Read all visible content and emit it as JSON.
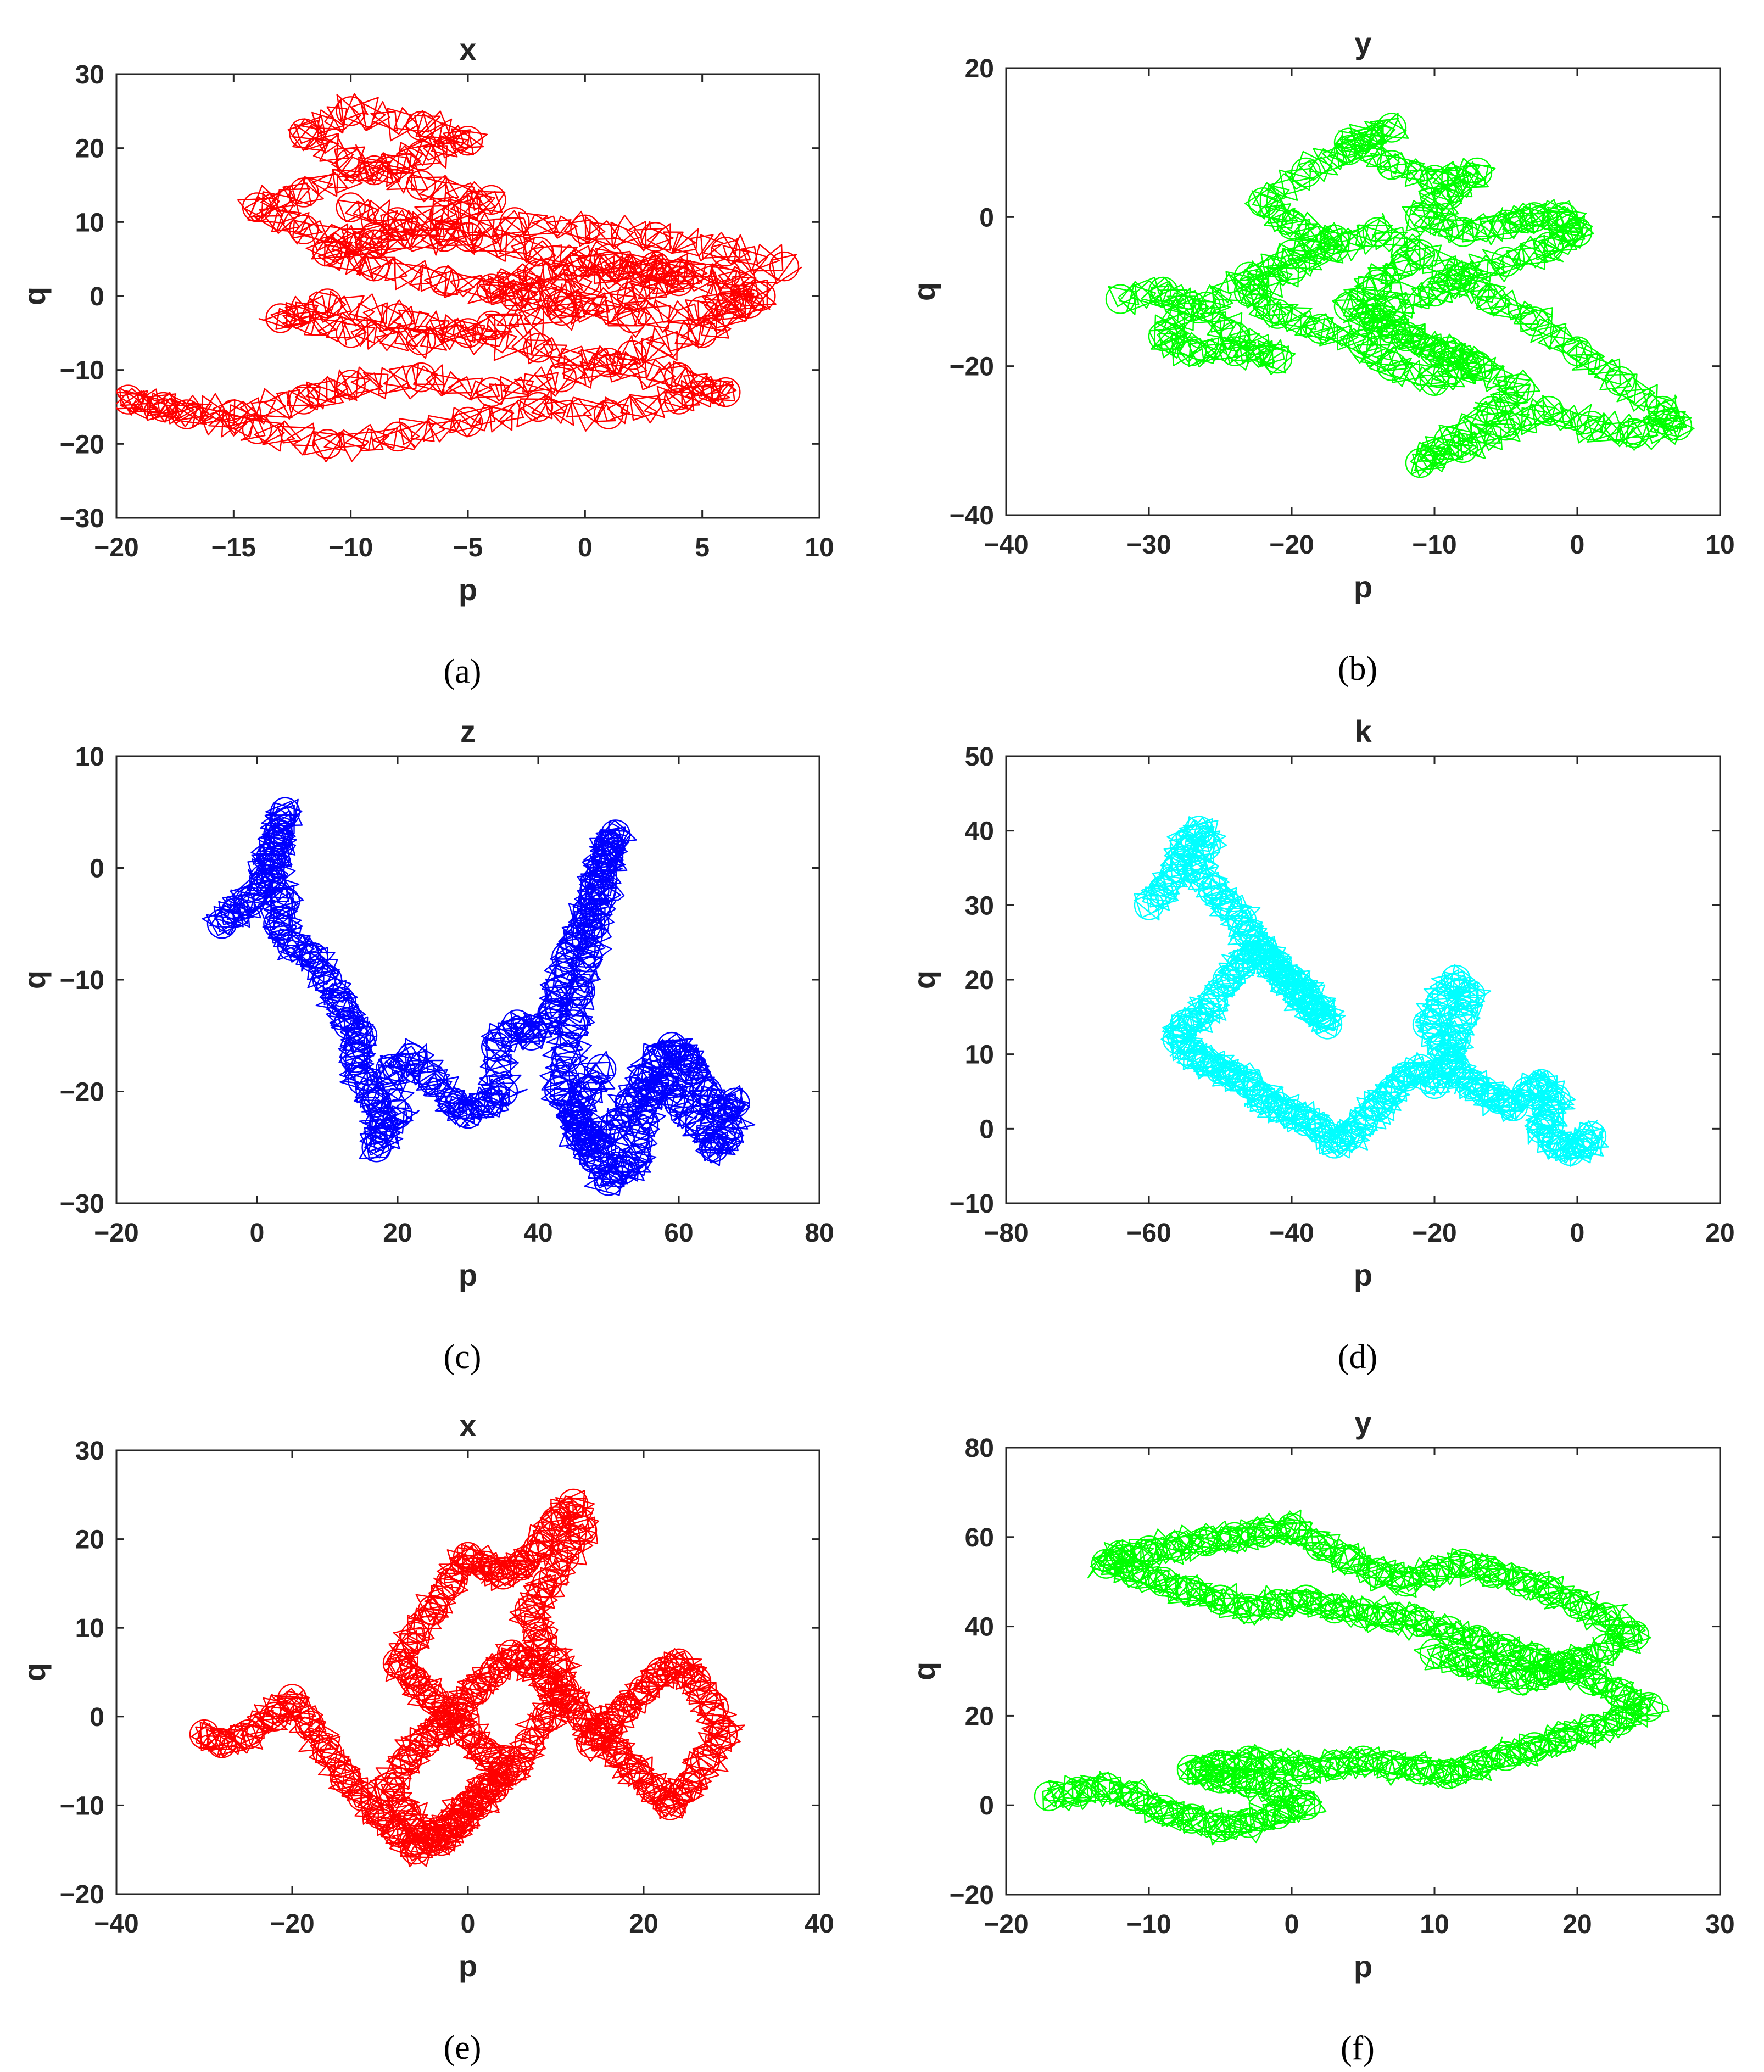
{
  "chart_data": [
    {
      "type": "line",
      "caption": "(a)",
      "title": "x",
      "xlabel": "p",
      "ylabel": "q",
      "xlim": [
        -20,
        10
      ],
      "ylim": [
        -30,
        30
      ],
      "xticks": [
        -20,
        -15,
        -10,
        -5,
        0,
        5,
        10
      ],
      "yticks": [
        -30,
        -20,
        -10,
        0,
        10,
        20,
        30
      ],
      "color": "#ff0000",
      "series": [
        {
          "x": [
            8.5,
            6,
            3,
            0,
            -3,
            -6,
            -9,
            -12,
            -14,
            -12,
            -9,
            -7,
            -5,
            -7,
            -10,
            -12,
            -10,
            -7,
            -4,
            -6,
            -9,
            -11,
            -9,
            -6,
            -3,
            0,
            3,
            6,
            7.5,
            5,
            2,
            -1,
            -4,
            -2,
            1,
            4,
            7,
            5,
            2,
            -1,
            -4,
            -7,
            -10,
            -12,
            -15,
            -18,
            -19.5,
            -17,
            -14,
            -11,
            -8,
            -5,
            -2,
            1,
            4,
            6,
            4,
            1,
            -2,
            -5,
            -8,
            -11,
            -13,
            -10,
            -7,
            -4,
            -1,
            2,
            4,
            1,
            -2,
            -5,
            -8,
            -10
          ],
          "y": [
            4,
            6,
            8,
            9,
            10,
            8,
            7,
            9,
            12,
            14,
            17,
            19,
            21,
            23,
            25,
            22,
            18,
            15,
            13,
            11,
            8,
            6,
            4,
            2,
            0,
            2,
            4,
            3,
            0,
            -2,
            -3,
            -1,
            1,
            3,
            5,
            3,
            -1,
            -5,
            -8,
            -11,
            -13,
            -11,
            -12,
            -14,
            -16,
            -15,
            -14,
            -16,
            -18,
            -20,
            -19,
            -17,
            -15,
            -16,
            -14,
            -13,
            -11,
            -9,
            -7,
            -5,
            -3,
            -1,
            -3,
            -5,
            -6,
            -4,
            -2,
            0,
            2,
            4,
            6,
            8,
            10,
            12
          ]
        }
      ]
    },
    {
      "type": "line",
      "caption": "(b)",
      "title": "y",
      "xlabel": "p",
      "ylabel": "q",
      "xlim": [
        -40,
        10
      ],
      "ylim": [
        -40,
        20
      ],
      "xticks": [
        -40,
        -30,
        -20,
        -10,
        0,
        10
      ],
      "yticks": [
        -40,
        -20,
        0,
        20
      ],
      "color": "#00ff00",
      "series": [
        {
          "x": [
            -32,
            -29,
            -27,
            -29,
            -27,
            -24,
            -21,
            -24,
            -26,
            -23,
            -20,
            -17,
            -20,
            -22,
            -19,
            -16,
            -13,
            -16,
            -13,
            -10,
            -7,
            -9,
            -11,
            -8,
            -5,
            -3,
            -1,
            0,
            -2,
            -5,
            -8,
            -10,
            -13,
            -15,
            -12,
            -9,
            -7,
            -10,
            -13,
            -15,
            -18,
            -21,
            -23,
            -20,
            -17,
            -14,
            -11,
            -8,
            -6,
            -3,
            0,
            3,
            6,
            7,
            4,
            1,
            -2,
            -5,
            -8,
            -11,
            -9,
            -6,
            -4,
            -7,
            -10,
            -13,
            -16,
            -14,
            -12
          ],
          "y": [
            -11,
            -10,
            -12,
            -16,
            -18,
            -18,
            -19,
            -16,
            -12,
            -8,
            -5,
            -3,
            -1,
            2,
            6,
            9,
            12,
            10,
            7,
            5,
            6,
            3,
            0,
            -2,
            -1,
            0,
            0,
            -2,
            -4,
            -6,
            -8,
            -10,
            -12,
            -14,
            -16,
            -18,
            -20,
            -22,
            -20,
            -17,
            -15,
            -13,
            -10,
            -7,
            -4,
            -2,
            -5,
            -8,
            -11,
            -14,
            -18,
            -22,
            -26,
            -28,
            -29,
            -28,
            -26,
            -28,
            -31,
            -33,
            -30,
            -26,
            -23,
            -20,
            -18,
            -15,
            -12,
            -9,
            -6
          ]
        }
      ]
    },
    {
      "type": "line",
      "caption": "(c)",
      "title": "z",
      "xlabel": "p",
      "ylabel": "q",
      "xlim": [
        -20,
        80
      ],
      "ylim": [
        -30,
        10
      ],
      "xticks": [
        -20,
        0,
        20,
        40,
        60,
        80
      ],
      "yticks": [
        -30,
        -20,
        -10,
        0,
        10
      ],
      "color": "#0000ff",
      "series": [
        {
          "x": [
            -5,
            -3,
            -1,
            1,
            2,
            3,
            4,
            3,
            2,
            4,
            3,
            5,
            8,
            10,
            12,
            13,
            15,
            14,
            15,
            17,
            18,
            17,
            20,
            19,
            22,
            25,
            28,
            30,
            33,
            35,
            34,
            37,
            39,
            42,
            43,
            44,
            46,
            47,
            48,
            49,
            50,
            51,
            50,
            49,
            48,
            47,
            46,
            45,
            44,
            43,
            45,
            47,
            49,
            51,
            53,
            55,
            57,
            59,
            61,
            62,
            64,
            66,
            68,
            67,
            65,
            63,
            60,
            58,
            56,
            55,
            54,
            52,
            50,
            48,
            46,
            45,
            47,
            49
          ],
          "y": [
            -5,
            -4,
            -3,
            -1,
            1,
            3,
            5,
            2,
            -1,
            -3,
            -5,
            -7,
            -8,
            -10,
            -12,
            -14,
            -15,
            -17,
            -19,
            -21,
            -23,
            -25,
            -22,
            -18,
            -17,
            -19,
            -21,
            -22,
            -21,
            -20,
            -16,
            -14,
            -15,
            -13,
            -11,
            -8,
            -6,
            -4,
            -2,
            0,
            2,
            3,
            1,
            -2,
            -5,
            -8,
            -11,
            -14,
            -17,
            -20,
            -22,
            -24,
            -25,
            -23,
            -21,
            -19,
            -17,
            -16,
            -17,
            -18,
            -20,
            -22,
            -21,
            -24,
            -25,
            -23,
            -21,
            -19,
            -20,
            -23,
            -26,
            -27,
            -28,
            -26,
            -24,
            -22,
            -20,
            -18
          ]
        }
      ]
    },
    {
      "type": "line",
      "caption": "(d)",
      "title": "k",
      "xlabel": "p",
      "ylabel": "q",
      "xlim": [
        -80,
        20
      ],
      "ylim": [
        -10,
        50
      ],
      "xticks": [
        -80,
        -60,
        -40,
        -20,
        0,
        20
      ],
      "yticks": [
        -10,
        0,
        10,
        20,
        30,
        40,
        50
      ],
      "color": "#00ffff",
      "series": [
        {
          "x": [
            -60,
            -58,
            -56,
            -55,
            -53,
            -52,
            -54,
            -51,
            -49,
            -47,
            -46,
            -44,
            -42,
            -40,
            -38,
            -36,
            -35,
            -37,
            -39,
            -41,
            -43,
            -45,
            -47,
            -49,
            -51,
            -53,
            -55,
            -56,
            -54,
            -52,
            -50,
            -48,
            -46,
            -44,
            -42,
            -40,
            -38,
            -36,
            -34,
            -32,
            -30,
            -28,
            -26,
            -24,
            -22,
            -20,
            -18,
            -17,
            -16,
            -15,
            -17,
            -19,
            -21,
            -19,
            -17,
            -15,
            -13,
            -11,
            -9,
            -7,
            -5,
            -3,
            -4,
            -5,
            -3,
            -1,
            1,
            2
          ],
          "y": [
            30,
            32,
            35,
            38,
            40,
            38,
            35,
            32,
            30,
            28,
            26,
            24,
            22,
            20,
            18,
            16,
            14,
            16,
            18,
            20,
            22,
            24,
            22,
            20,
            17,
            15,
            14,
            12,
            10,
            9,
            8,
            7,
            6,
            4,
            3,
            2,
            1,
            0,
            -2,
            -1,
            1,
            3,
            5,
            7,
            8,
            6,
            9,
            12,
            15,
            18,
            20,
            17,
            14,
            11,
            8,
            6,
            5,
            4,
            3,
            5,
            6,
            4,
            2,
            0,
            -2,
            -3,
            -2,
            -1
          ]
        }
      ]
    },
    {
      "type": "line",
      "caption": "(e)",
      "title": "x",
      "xlabel": "p",
      "ylabel": "q",
      "xlim": [
        -40,
        40
      ],
      "ylim": [
        -20,
        30
      ],
      "xticks": [
        -40,
        -20,
        0,
        20,
        40
      ],
      "yticks": [
        -20,
        -10,
        0,
        10,
        20,
        30
      ],
      "color": "#ff0000",
      "series": [
        {
          "x": [
            -30,
            -28,
            -25,
            -22,
            -20,
            -18,
            -16,
            -14,
            -12,
            -10,
            -8,
            -6,
            -4,
            -2,
            0,
            2,
            4,
            2,
            0,
            -2,
            -4,
            -6,
            -8,
            -6,
            -4,
            -2,
            0,
            2,
            4,
            6,
            8,
            10,
            12,
            13,
            11,
            9,
            7,
            8,
            10,
            11,
            9,
            7,
            5,
            3,
            1,
            -1,
            -3,
            -5,
            -7,
            -9,
            -7,
            -5,
            -3,
            -1,
            1,
            3,
            5,
            7,
            9,
            11,
            13,
            15,
            17,
            19,
            21,
            23,
            25,
            27,
            29,
            28,
            26,
            24,
            22,
            20,
            18,
            16,
            14
          ],
          "y": [
            -2,
            -3,
            -2,
            0,
            2,
            -1,
            -4,
            -7,
            -9,
            -11,
            -13,
            -15,
            -14,
            -12,
            -10,
            -8,
            -6,
            -4,
            -2,
            0,
            2,
            4,
            6,
            9,
            12,
            15,
            18,
            17,
            16,
            17,
            19,
            22,
            24,
            21,
            18,
            15,
            12,
            9,
            6,
            3,
            0,
            -3,
            -6,
            -8,
            -10,
            -12,
            -14,
            -13,
            -11,
            -8,
            -5,
            -3,
            -1,
            1,
            3,
            5,
            7,
            6,
            4,
            2,
            0,
            -2,
            -4,
            -6,
            -8,
            -10,
            -8,
            -5,
            -2,
            1,
            4,
            6,
            5,
            3,
            1,
            -1,
            -3
          ]
        }
      ]
    },
    {
      "type": "line",
      "caption": "(f)",
      "title": "y",
      "xlabel": "p",
      "ylabel": "q",
      "xlim": [
        -20,
        30
      ],
      "ylim": [
        -20,
        80
      ],
      "xticks": [
        -20,
        -10,
        0,
        10,
        20,
        30
      ],
      "yticks": [
        -20,
        0,
        20,
        40,
        60,
        80
      ],
      "color": "#00ff00",
      "series": [
        {
          "x": [
            -17,
            -15,
            -13,
            -11,
            -9,
            -7,
            -5,
            -3,
            -1,
            1,
            -1,
            -3,
            -5,
            -7,
            -5,
            -3,
            -1,
            1,
            3,
            5,
            7,
            9,
            11,
            13,
            15,
            17,
            19,
            21,
            23,
            25,
            23,
            21,
            19,
            17,
            15,
            13,
            11,
            9,
            7,
            5,
            3,
            1,
            -1,
            -3,
            -5,
            -7,
            -9,
            -11,
            -13,
            -12,
            -10,
            -8,
            -6,
            -4,
            -2,
            0,
            2,
            4,
            6,
            8,
            10,
            12,
            14,
            16,
            18,
            20,
            22,
            24,
            22,
            20,
            18,
            16,
            14,
            12,
            10
          ],
          "y": [
            2,
            3,
            4,
            2,
            -1,
            -3,
            -5,
            -4,
            -2,
            0,
            3,
            5,
            6,
            8,
            9,
            10,
            9,
            8,
            9,
            10,
            9,
            8,
            7,
            9,
            11,
            13,
            15,
            17,
            19,
            22,
            25,
            28,
            31,
            33,
            35,
            37,
            39,
            41,
            42,
            43,
            44,
            46,
            45,
            44,
            46,
            48,
            50,
            52,
            54,
            56,
            57,
            58,
            59,
            60,
            61,
            62,
            58,
            55,
            52,
            50,
            52,
            54,
            52,
            50,
            48,
            45,
            42,
            38,
            35,
            32,
            30,
            28,
            30,
            32,
            34
          ]
        }
      ]
    }
  ]
}
